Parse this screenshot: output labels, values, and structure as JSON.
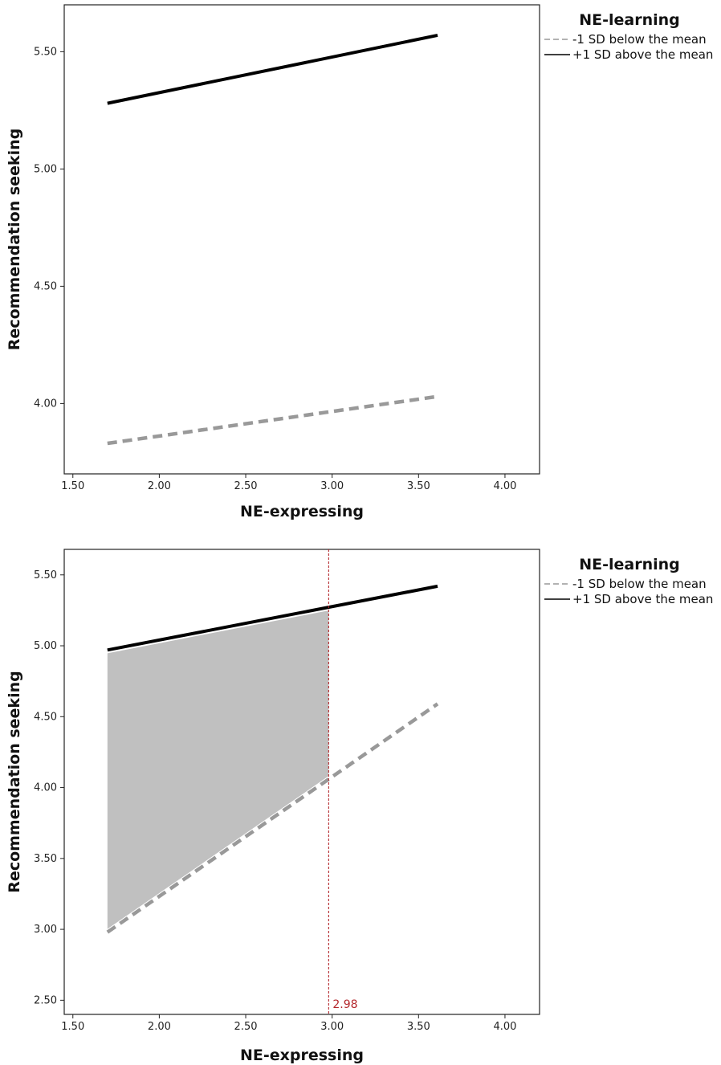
{
  "chart_data": [
    {
      "type": "line",
      "xlabel": "NE-expressing",
      "ylabel": "Recommendation seeking",
      "xlim": [
        1.45,
        4.2
      ],
      "ylim": [
        3.7,
        5.7
      ],
      "xticks": [
        "1.50",
        "2.00",
        "2.50",
        "3.00",
        "3.50",
        "4.00"
      ],
      "yticks": [
        "4.00",
        "4.50",
        "5.00",
        "5.50"
      ],
      "legend_title": "NE-learning",
      "legend_position": "outside-top-right",
      "series": [
        {
          "name": "-1 SD below the mean",
          "style": "dashed",
          "color": "#999999",
          "x": [
            1.7,
            3.61
          ],
          "y": [
            3.83,
            4.03
          ]
        },
        {
          "name": "+1 SD above the mean",
          "style": "solid",
          "color": "#000000",
          "x": [
            1.7,
            3.61
          ],
          "y": [
            5.28,
            5.57
          ]
        }
      ],
      "grid": false
    },
    {
      "type": "line",
      "xlabel": "NE-expressing",
      "ylabel": "Recommendation seeking",
      "xlim": [
        1.45,
        4.2
      ],
      "ylim": [
        2.4,
        5.68
      ],
      "xticks": [
        "1.50",
        "2.00",
        "2.50",
        "3.00",
        "3.50",
        "4.00"
      ],
      "yticks": [
        "2.50",
        "3.00",
        "3.50",
        "4.00",
        "4.50",
        "5.00",
        "5.50"
      ],
      "legend_title": "NE-learning",
      "legend_position": "outside-top-right",
      "series": [
        {
          "name": "-1 SD below the mean",
          "style": "dashed",
          "color": "#999999",
          "x": [
            1.7,
            3.61
          ],
          "y": [
            2.98,
            4.59
          ]
        },
        {
          "name": "+1 SD above the mean",
          "style": "solid",
          "color": "#000000",
          "x": [
            1.7,
            3.61
          ],
          "y": [
            4.97,
            5.42
          ]
        }
      ],
      "region": {
        "label": "region of significance",
        "color": "#c0c0c0",
        "x": [
          1.7,
          2.98
        ]
      },
      "marker_line": {
        "x": 2.98,
        "label": "2.98",
        "color": "#b3262b",
        "style": "dotted"
      },
      "grid": false
    }
  ]
}
